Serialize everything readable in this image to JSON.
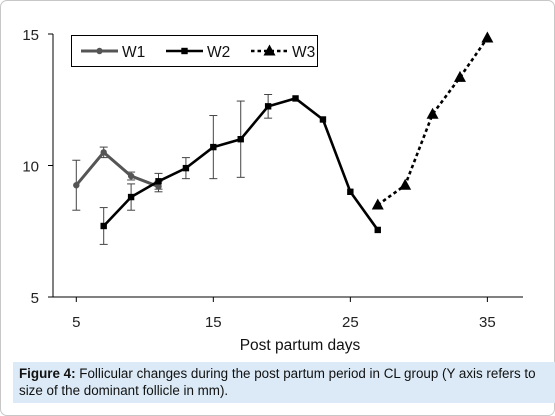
{
  "chart_data": {
    "type": "line",
    "xlabel": "Post partum days",
    "ylabel": "",
    "xlim": [
      3.3,
      37.6
    ],
    "ylim": [
      5,
      15
    ],
    "xticks": [
      5,
      15,
      25,
      35
    ],
    "yticks": [
      5,
      10,
      15
    ],
    "grid": false,
    "legend_position": "top-left",
    "series": [
      {
        "name": "W1",
        "x": [
          5,
          7,
          9,
          11
        ],
        "y": [
          9.25,
          10.5,
          9.6,
          9.2
        ],
        "error": [
          0.95,
          0.2,
          0.15,
          0.2
        ],
        "color": "#555555",
        "marker": "circle",
        "dash": "solid"
      },
      {
        "name": "W2",
        "x": [
          7,
          9,
          11,
          13,
          15,
          17,
          19,
          21,
          23,
          25,
          27
        ],
        "y": [
          7.7,
          8.8,
          9.4,
          9.9,
          10.7,
          11.0,
          12.25,
          12.55,
          11.75,
          9.0,
          7.55
        ],
        "error": [
          0.7,
          0.5,
          0.3,
          0.4,
          1.2,
          1.45,
          0.45,
          null,
          null,
          null,
          null
        ],
        "color": "#000000",
        "marker": "square",
        "dash": "solid"
      },
      {
        "name": "W3",
        "x": [
          27,
          29,
          31,
          33,
          35
        ],
        "y": [
          8.5,
          9.25,
          11.95,
          13.35,
          14.85
        ],
        "color": "#000000",
        "marker": "triangle",
        "dash": "dotted"
      }
    ]
  },
  "caption": {
    "label": "Figure 4:",
    "text": " Follicular changes during the post partum period in CL group (Y axis refers to size of the dominant follicle in mm)."
  }
}
